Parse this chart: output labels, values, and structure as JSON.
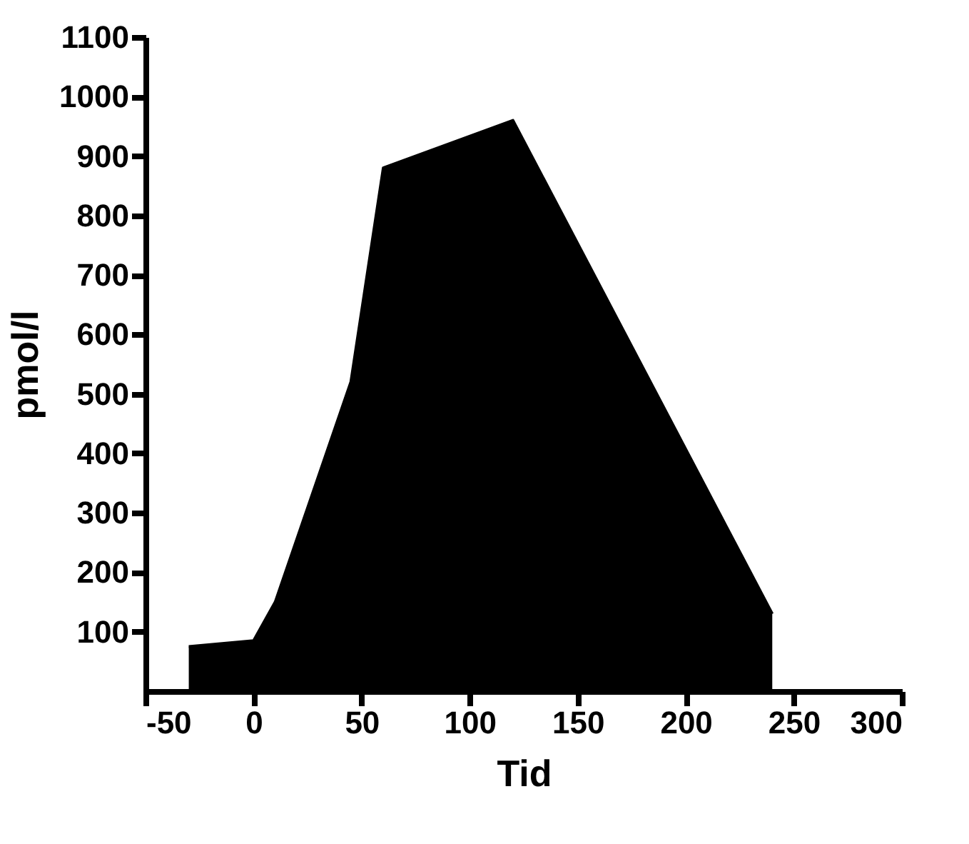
{
  "chart_data": {
    "type": "area",
    "xlabel": "Tid",
    "ylabel": "pmol/l",
    "x": [
      -30,
      0,
      10,
      45,
      60,
      120,
      240
    ],
    "series": [
      {
        "color": "#000000",
        "values": [
          75,
          85,
          150,
          520,
          880,
          960,
          130
        ]
      }
    ],
    "xlim": [
      -50,
      300
    ],
    "xticks": [
      -50,
      0,
      50,
      100,
      150,
      200,
      250,
      300
    ],
    "ylim": [
      0,
      1100
    ],
    "yticks": [
      100,
      200,
      300,
      400,
      500,
      600,
      700,
      800,
      900,
      1000,
      1100
    ],
    "grid": false
  }
}
